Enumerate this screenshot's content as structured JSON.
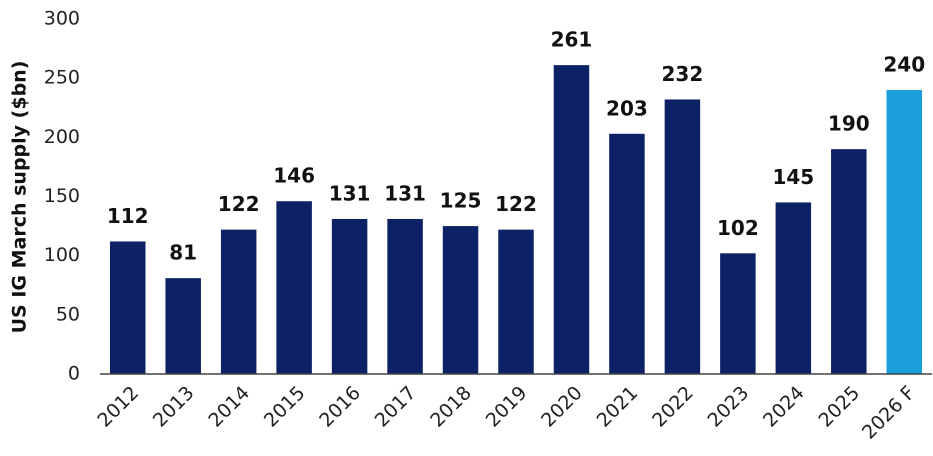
{
  "chart_data": {
    "type": "bar",
    "y_axis_label": "US IG March supply ($bn)",
    "categories": [
      "2012",
      "2013",
      "2014",
      "2015",
      "2016",
      "2017",
      "2018",
      "2019",
      "2020",
      "2021",
      "2022",
      "2023",
      "2024",
      "2025",
      "2026 F"
    ],
    "values": [
      112,
      81,
      122,
      146,
      131,
      131,
      125,
      122,
      261,
      203,
      232,
      102,
      145,
      190,
      240
    ],
    "colors": [
      "#0c2265",
      "#0c2265",
      "#0c2265",
      "#0c2265",
      "#0c2265",
      "#0c2265",
      "#0c2265",
      "#0c2265",
      "#0c2265",
      "#0c2265",
      "#0c2265",
      "#0c2265",
      "#0c2265",
      "#0c2265",
      "#1a9fdb"
    ],
    "ylim": [
      0,
      300
    ],
    "yticks": [
      0,
      50,
      100,
      150,
      200,
      250,
      300
    ],
    "grid": false
  }
}
